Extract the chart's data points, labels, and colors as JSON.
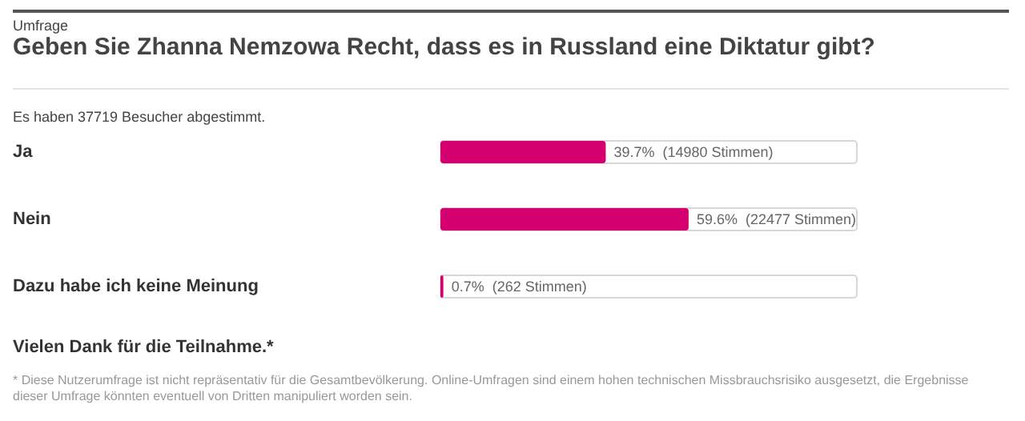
{
  "chart_data": {
    "type": "bar",
    "orientation": "horizontal",
    "subtitle": "Umfrage",
    "title": "Geben Sie Zhanna Nemzowa Recht, dass es in Russland eine Diktatur gibt?",
    "categories": [
      "Ja",
      "Nein",
      "Dazu habe ich keine Meinung"
    ],
    "values": [
      39.7,
      59.6,
      0.7
    ],
    "color": "#d4006f",
    "value_labels": [
      "39.7%  (14980 Stimmen)",
      "59.6%  (22477 Stimmen)",
      "0.7%  (262 Stimmen)"
    ],
    "xlim": [
      0,
      100
    ],
    "tick_labels": "y",
    "annotations": [
      "Es haben 37719 Besucher abgestimmt.",
      "Vielen Dank für die Teilnahme.*",
      "* Diese Nutzerumfrage ist nicht repräsentativ für die Gesamtbevölkerung. Online-Umfragen sind einem hohen technischen Missbrauchsrisiko ausgesetzt, die Ergebnisse dieser Umfrage könnten eventuell von Dritten manipuliert worden sein."
    ]
  }
}
